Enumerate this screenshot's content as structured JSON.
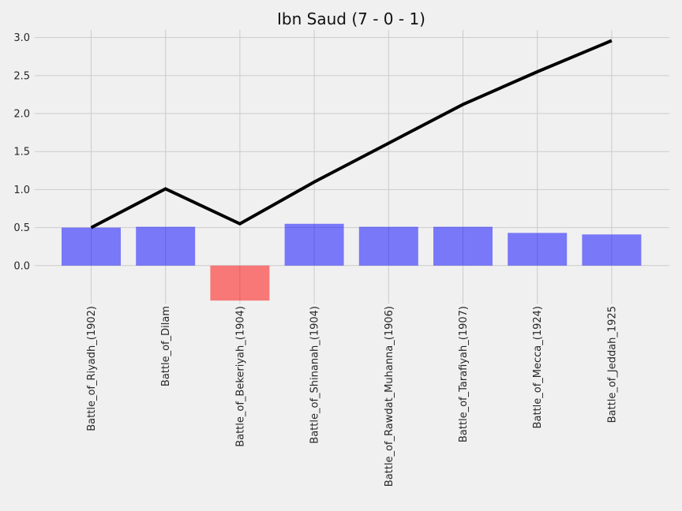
{
  "chart_data": {
    "type": "bar",
    "title": "Ibn Saud (7 - 0 - 1)",
    "xlabel": "",
    "ylabel": "",
    "categories": [
      "Battle_of_Riyadh_(1902)",
      "Battle_of_Dilam",
      "Battle_of_Bekeriyah_(1904)",
      "Battle_of_Shinanah_(1904)",
      "Battle_of_Rawdat_Muhanna_(1906)",
      "Battle_of_Tarafiyah_(1907)",
      "Battle_of_Mecca_(1924)",
      "Battle_of_Jeddah_1925"
    ],
    "series": [
      {
        "type": "bar",
        "values": [
          0.5,
          0.51,
          -0.46,
          0.55,
          0.51,
          0.51,
          0.43,
          0.41
        ],
        "color_positive": "#0000ff",
        "color_negative": "#ff0000",
        "opacity": 0.5
      },
      {
        "type": "line",
        "values": [
          0.5,
          1.01,
          0.55,
          1.1,
          1.61,
          2.12,
          2.55,
          2.96
        ],
        "color": "#000000"
      }
    ],
    "yticks": [
      "0.0",
      "0.5",
      "1.0",
      "1.5",
      "2.0",
      "2.5",
      "3.0"
    ],
    "ylim": [
      -0.5,
      3.1
    ],
    "grid": true,
    "background": "#f0f0f0",
    "grid_color": "#cbcbcb"
  }
}
